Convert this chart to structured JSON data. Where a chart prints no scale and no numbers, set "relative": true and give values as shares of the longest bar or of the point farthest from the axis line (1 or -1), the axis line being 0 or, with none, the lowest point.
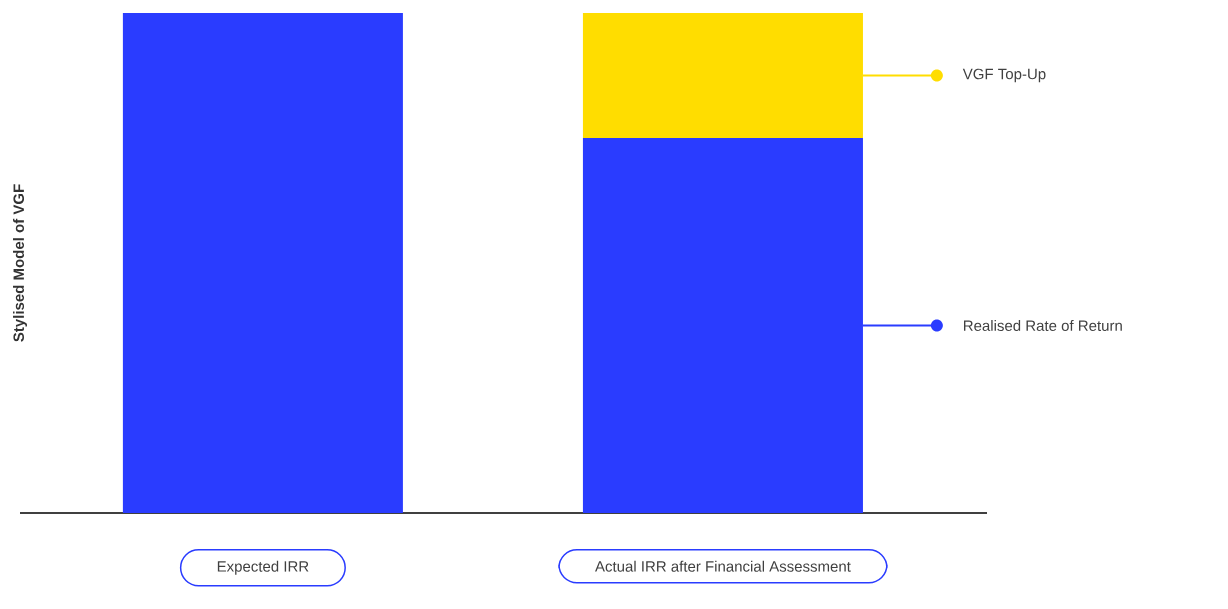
{
  "chart_data": {
    "type": "bar",
    "relative": true,
    "legend": "right",
    "stacked": true,
    "ylabel": "Stylised Model of VGF",
    "categories": [
      "Expected IRR",
      "Actual IRR after Financial Assessment"
    ],
    "series": [
      {
        "name": "Realised Rate of Return",
        "color": "#2a3cff",
        "values": [
          1.0,
          0.75
        ]
      },
      {
        "name": "VGF Top-Up",
        "color": "#ffdd00",
        "values": [
          null,
          0.25
        ]
      }
    ]
  }
}
